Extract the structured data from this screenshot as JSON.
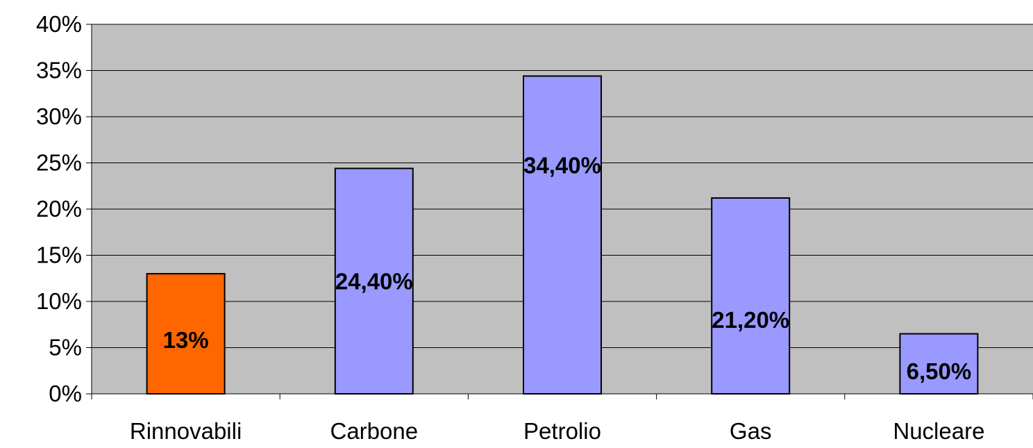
{
  "chart_data": {
    "type": "bar",
    "categories": [
      "Rinnovabili",
      "Carbone",
      "Petrolio",
      "Gas",
      "Nucleare"
    ],
    "values": [
      13,
      24.4,
      34.4,
      21.2,
      6.5
    ],
    "data_labels": [
      "13%",
      "24,40%",
      "34,40%",
      "21,20%",
      "6,50%"
    ],
    "bar_colors": [
      "#ff6600",
      "#9999ff",
      "#9999ff",
      "#9999ff",
      "#9999ff"
    ],
    "ylim": [
      0,
      40
    ],
    "yticks": [
      0,
      5,
      10,
      15,
      20,
      25,
      30,
      35,
      40
    ],
    "ytick_labels": [
      "0%",
      "5%",
      "10%",
      "15%",
      "20%",
      "25%",
      "30%",
      "35%",
      "40%"
    ],
    "title": "",
    "xlabel": "",
    "ylabel": "",
    "grid": true,
    "legend": "none",
    "plot_background": "#c0c0c0",
    "bar_outline": "#000000"
  }
}
